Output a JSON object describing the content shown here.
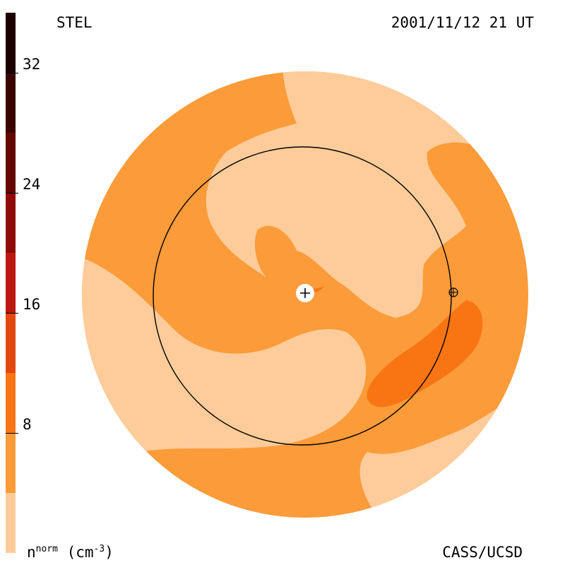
{
  "header": {
    "left": "STEL",
    "right": "2001/11/12 21 UT"
  },
  "footer": {
    "quantity": "n",
    "quantity_sup": "norm",
    "unit_open": " (cm",
    "unit_sup": "-3",
    "unit_close": ")",
    "credit": "CASS/UCSD"
  },
  "colorbar": {
    "ticks": [
      "8",
      "16",
      "24",
      "32"
    ],
    "bands": [
      {
        "from": 0,
        "to": 4,
        "color": "#fdcc9a"
      },
      {
        "from": 4,
        "to": 8,
        "color": "#fb9b39"
      },
      {
        "from": 8,
        "to": 12,
        "color": "#f97513"
      },
      {
        "from": 12,
        "to": 16,
        "color": "#e2470c"
      },
      {
        "from": 16,
        "to": 20,
        "color": "#bd1911"
      },
      {
        "from": 20,
        "to": 24,
        "color": "#8f0a08"
      },
      {
        "from": 24,
        "to": 28,
        "color": "#640704"
      },
      {
        "from": 28,
        "to": 32,
        "color": "#3b0402"
      },
      {
        "from": 32,
        "to": 36,
        "color": "#1c0100"
      }
    ],
    "min": 0,
    "max": 36
  },
  "colors": {
    "low": "#fdcc9a",
    "mid": "#fb9b39",
    "high": "#f97513"
  }
}
